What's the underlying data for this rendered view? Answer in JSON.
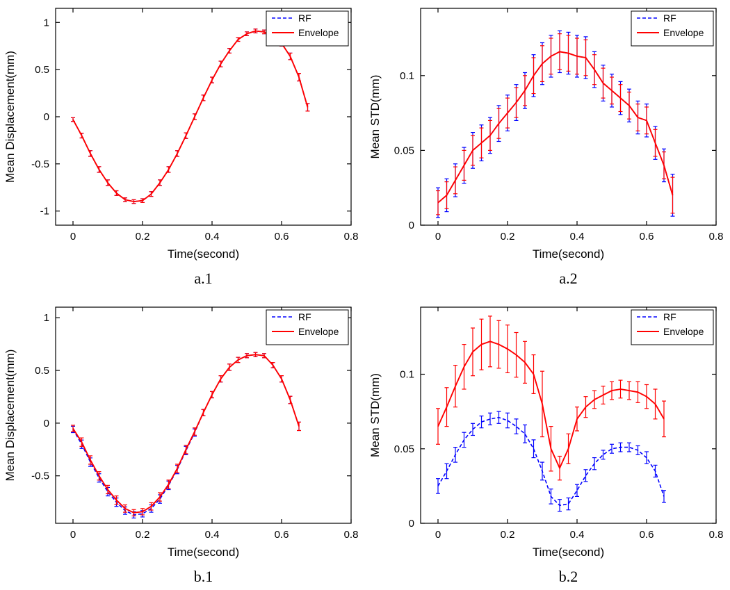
{
  "figure": {
    "background": "#ffffff"
  },
  "colors": {
    "rf": "#0000ff",
    "envelope": "#ff0000",
    "axis": "#000000"
  },
  "chart_data": [
    {
      "caption": "a.1",
      "type": "line",
      "xlabel": "Time(second)",
      "ylabel": "Mean Displacement(mm)",
      "xlim": [
        -0.05,
        0.8
      ],
      "ylim": [
        -1.15,
        1.15
      ],
      "xticks": {
        "values": [
          0,
          0.2,
          0.4,
          0.6,
          0.8
        ],
        "labels": [
          "0",
          "0.2",
          "0.4",
          "0.6",
          "0.8"
        ]
      },
      "yticks": {
        "values": [
          -1,
          -0.5,
          0,
          0.5,
          1
        ],
        "labels": [
          "-1",
          "-0.5",
          "0",
          "0.5",
          "1"
        ]
      },
      "legend_position": "top-right",
      "grid": false,
      "x": [
        0,
        0.025,
        0.05,
        0.075,
        0.1,
        0.125,
        0.15,
        0.175,
        0.2,
        0.225,
        0.25,
        0.275,
        0.3,
        0.325,
        0.35,
        0.375,
        0.4,
        0.425,
        0.45,
        0.475,
        0.5,
        0.525,
        0.55,
        0.575,
        0.6,
        0.625,
        0.65,
        0.675
      ],
      "series": [
        {
          "name": "RF",
          "color": "#0000ff",
          "dash": true,
          "values": [
            -0.03,
            -0.2,
            -0.39,
            -0.56,
            -0.7,
            -0.81,
            -0.88,
            -0.9,
            -0.89,
            -0.82,
            -0.7,
            -0.56,
            -0.39,
            -0.2,
            0,
            0.2,
            0.39,
            0.56,
            0.7,
            0.82,
            0.88,
            0.91,
            0.9,
            0.86,
            0.78,
            0.64,
            0.42,
            0.1
          ],
          "errors": [
            0.02,
            0.025,
            0.03,
            0.03,
            0.03,
            0.025,
            0.02,
            0.02,
            0.02,
            0.025,
            0.03,
            0.03,
            0.03,
            0.03,
            0.03,
            0.03,
            0.03,
            0.03,
            0.025,
            0.02,
            0.02,
            0.02,
            0.02,
            0.025,
            0.03,
            0.035,
            0.04,
            0.04
          ]
        },
        {
          "name": "Envelope",
          "color": "#ff0000",
          "dash": false,
          "values": [
            -0.03,
            -0.2,
            -0.39,
            -0.56,
            -0.7,
            -0.81,
            -0.88,
            -0.9,
            -0.89,
            -0.82,
            -0.7,
            -0.56,
            -0.39,
            -0.2,
            0,
            0.2,
            0.39,
            0.56,
            0.7,
            0.82,
            0.88,
            0.91,
            0.9,
            0.86,
            0.78,
            0.64,
            0.42,
            0.1
          ],
          "errors": [
            0.02,
            0.025,
            0.03,
            0.03,
            0.03,
            0.025,
            0.02,
            0.02,
            0.02,
            0.025,
            0.03,
            0.03,
            0.03,
            0.03,
            0.03,
            0.03,
            0.03,
            0.03,
            0.025,
            0.02,
            0.02,
            0.02,
            0.02,
            0.025,
            0.03,
            0.035,
            0.04,
            0.04
          ]
        }
      ]
    },
    {
      "caption": "a.2",
      "type": "line",
      "xlabel": "Time(second)",
      "ylabel": "Mean STD(mm)",
      "xlim": [
        -0.05,
        0.8
      ],
      "ylim": [
        0,
        0.145
      ],
      "xticks": {
        "values": [
          0,
          0.2,
          0.4,
          0.6,
          0.8
        ],
        "labels": [
          "0",
          "0.2",
          "0.4",
          "0.6",
          "0.8"
        ]
      },
      "yticks": {
        "values": [
          0,
          0.05,
          0.1
        ],
        "labels": [
          "0",
          "0.05",
          "0.1"
        ]
      },
      "legend_position": "top-right",
      "grid": false,
      "x": [
        0,
        0.025,
        0.05,
        0.075,
        0.1,
        0.125,
        0.15,
        0.175,
        0.2,
        0.225,
        0.25,
        0.275,
        0.3,
        0.325,
        0.35,
        0.375,
        0.4,
        0.425,
        0.45,
        0.475,
        0.5,
        0.525,
        0.55,
        0.575,
        0.6,
        0.625,
        0.65,
        0.675
      ],
      "series": [
        {
          "name": "RF",
          "color": "#0000ff",
          "dash": true,
          "values": [
            0.015,
            0.02,
            0.03,
            0.04,
            0.05,
            0.055,
            0.06,
            0.068,
            0.075,
            0.082,
            0.09,
            0.1,
            0.108,
            0.113,
            0.116,
            0.115,
            0.113,
            0.112,
            0.104,
            0.095,
            0.09,
            0.085,
            0.08,
            0.072,
            0.07,
            0.055,
            0.04,
            0.02
          ],
          "errors": [
            0.01,
            0.011,
            0.011,
            0.012,
            0.012,
            0.012,
            0.012,
            0.012,
            0.012,
            0.012,
            0.012,
            0.014,
            0.014,
            0.014,
            0.014,
            0.014,
            0.014,
            0.014,
            0.012,
            0.012,
            0.011,
            0.011,
            0.011,
            0.011,
            0.011,
            0.011,
            0.011,
            0.014
          ]
        },
        {
          "name": "Envelope",
          "color": "#ff0000",
          "dash": false,
          "values": [
            0.015,
            0.02,
            0.03,
            0.04,
            0.05,
            0.055,
            0.06,
            0.068,
            0.075,
            0.082,
            0.09,
            0.1,
            0.108,
            0.113,
            0.116,
            0.115,
            0.113,
            0.112,
            0.104,
            0.095,
            0.09,
            0.085,
            0.08,
            0.072,
            0.07,
            0.055,
            0.04,
            0.02
          ],
          "errors": [
            0.008,
            0.009,
            0.009,
            0.01,
            0.01,
            0.01,
            0.01,
            0.01,
            0.01,
            0.01,
            0.01,
            0.012,
            0.012,
            0.012,
            0.012,
            0.012,
            0.012,
            0.012,
            0.01,
            0.01,
            0.009,
            0.009,
            0.009,
            0.009,
            0.009,
            0.009,
            0.009,
            0.012
          ]
        }
      ]
    },
    {
      "caption": "b.1",
      "type": "line",
      "xlabel": "Time(second)",
      "ylabel": "Mean Displacement(mm)",
      "xlim": [
        -0.05,
        0.8
      ],
      "ylim": [
        -0.95,
        1.1
      ],
      "xticks": {
        "values": [
          0,
          0.2,
          0.4,
          0.6,
          0.8
        ],
        "labels": [
          "0",
          "0.2",
          "0.4",
          "0.6",
          "0.8"
        ]
      },
      "yticks": {
        "values": [
          -0.5,
          0,
          0.5,
          1
        ],
        "labels": [
          "-0.5",
          "0",
          "0.5",
          "1"
        ]
      },
      "legend_position": "top-right",
      "grid": false,
      "x": [
        0,
        0.025,
        0.05,
        0.075,
        0.1,
        0.125,
        0.15,
        0.175,
        0.2,
        0.225,
        0.25,
        0.275,
        0.3,
        0.325,
        0.35,
        0.375,
        0.4,
        0.425,
        0.45,
        0.475,
        0.5,
        0.525,
        0.55,
        0.575,
        0.6,
        0.625,
        0.65
      ],
      "series": [
        {
          "name": "RF",
          "color": "#0000ff",
          "dash": true,
          "values": [
            -0.06,
            -0.2,
            -0.37,
            -0.52,
            -0.65,
            -0.75,
            -0.83,
            -0.87,
            -0.86,
            -0.81,
            -0.72,
            -0.59,
            -0.44,
            -0.26,
            -0.09,
            0.1,
            0.27,
            0.42,
            0.53,
            0.6,
            0.64,
            0.65,
            0.64,
            0.55,
            0.42,
            0.22,
            -0.03
          ],
          "errors": [
            0.03,
            0.04,
            0.04,
            0.04,
            0.04,
            0.04,
            0.035,
            0.03,
            0.03,
            0.035,
            0.04,
            0.04,
            0.04,
            0.04,
            0.035,
            0.03,
            0.03,
            0.03,
            0.03,
            0.025,
            0.02,
            0.02,
            0.02,
            0.025,
            0.03,
            0.035,
            0.04
          ]
        },
        {
          "name": "Envelope",
          "color": "#ff0000",
          "dash": false,
          "values": [
            -0.05,
            -0.18,
            -0.35,
            -0.5,
            -0.63,
            -0.73,
            -0.81,
            -0.85,
            -0.84,
            -0.79,
            -0.7,
            -0.58,
            -0.43,
            -0.25,
            -0.08,
            0.1,
            0.27,
            0.42,
            0.53,
            0.6,
            0.64,
            0.65,
            0.64,
            0.55,
            0.42,
            0.22,
            -0.03
          ],
          "errors": [
            0.03,
            0.04,
            0.04,
            0.04,
            0.04,
            0.04,
            0.035,
            0.03,
            0.03,
            0.035,
            0.04,
            0.04,
            0.04,
            0.04,
            0.035,
            0.03,
            0.03,
            0.03,
            0.03,
            0.025,
            0.02,
            0.02,
            0.02,
            0.025,
            0.03,
            0.035,
            0.04
          ]
        }
      ]
    },
    {
      "caption": "b.2",
      "type": "line",
      "xlabel": "Time(second)",
      "ylabel": "Mean STD(mm)",
      "xlim": [
        -0.05,
        0.8
      ],
      "ylim": [
        0,
        0.145
      ],
      "xticks": {
        "values": [
          0,
          0.2,
          0.4,
          0.6,
          0.8
        ],
        "labels": [
          "0",
          "0.2",
          "0.4",
          "0.6",
          "0.8"
        ]
      },
      "yticks": {
        "values": [
          0,
          0.05,
          0.1
        ],
        "labels": [
          "0",
          "0.05",
          "0.1"
        ]
      },
      "legend_position": "top-right",
      "grid": false,
      "x": [
        0,
        0.025,
        0.05,
        0.075,
        0.1,
        0.125,
        0.15,
        0.175,
        0.2,
        0.225,
        0.25,
        0.275,
        0.3,
        0.325,
        0.35,
        0.375,
        0.4,
        0.425,
        0.45,
        0.475,
        0.5,
        0.525,
        0.55,
        0.575,
        0.6,
        0.625,
        0.65
      ],
      "series": [
        {
          "name": "RF",
          "color": "#0000ff",
          "dash": true,
          "values": [
            0.025,
            0.035,
            0.046,
            0.056,
            0.063,
            0.068,
            0.07,
            0.071,
            0.069,
            0.065,
            0.06,
            0.05,
            0.035,
            0.018,
            0.012,
            0.013,
            0.022,
            0.032,
            0.04,
            0.046,
            0.05,
            0.051,
            0.051,
            0.049,
            0.044,
            0.035,
            0.018
          ],
          "errors": [
            0.005,
            0.005,
            0.005,
            0.005,
            0.004,
            0.004,
            0.004,
            0.004,
            0.005,
            0.005,
            0.006,
            0.006,
            0.006,
            0.005,
            0.004,
            0.004,
            0.004,
            0.004,
            0.004,
            0.003,
            0.003,
            0.003,
            0.003,
            0.003,
            0.004,
            0.004,
            0.004
          ]
        },
        {
          "name": "Envelope",
          "color": "#ff0000",
          "dash": false,
          "values": [
            0.065,
            0.078,
            0.092,
            0.105,
            0.115,
            0.12,
            0.122,
            0.12,
            0.117,
            0.113,
            0.108,
            0.1,
            0.08,
            0.05,
            0.037,
            0.05,
            0.07,
            0.078,
            0.083,
            0.086,
            0.089,
            0.09,
            0.089,
            0.088,
            0.085,
            0.08,
            0.07
          ],
          "errors": [
            0.012,
            0.013,
            0.014,
            0.015,
            0.016,
            0.017,
            0.017,
            0.016,
            0.016,
            0.015,
            0.014,
            0.013,
            0.022,
            0.015,
            0.008,
            0.01,
            0.008,
            0.007,
            0.006,
            0.006,
            0.006,
            0.006,
            0.006,
            0.007,
            0.008,
            0.01,
            0.012
          ]
        }
      ]
    }
  ]
}
